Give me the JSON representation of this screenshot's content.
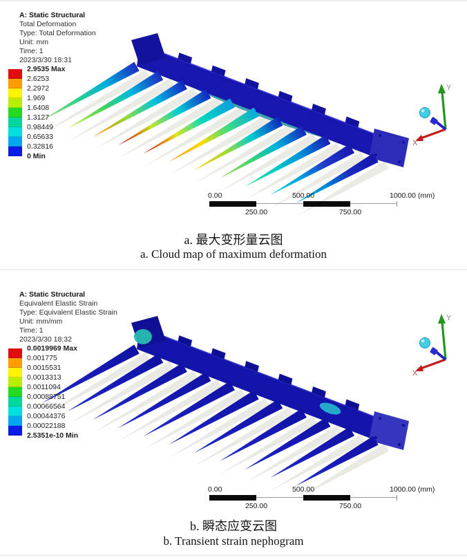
{
  "figure_a": {
    "info_lines": [
      "A: Static Structural",
      "Total Deformation",
      "Type: Total Deformation",
      "Unit: mm",
      "Time: 1",
      "2023/3/30 18:31"
    ],
    "legend": {
      "labels": [
        "2.9535 Max",
        "2.6253",
        "2.2972",
        "1.969",
        "1.6408",
        "1.3127",
        "0.98449",
        "0.65633",
        "0.32816",
        "0 Min"
      ],
      "colors": [
        "#e30b0b",
        "#ff9c00",
        "#fef300",
        "#b6f000",
        "#21dc21",
        "#00d89e",
        "#00e0e0",
        "#00a6ee",
        "#0b1ce8"
      ]
    },
    "scale_bar": {
      "zero": "0.00",
      "mid": "500.00",
      "end": "1000.00 (mm)",
      "q1": "250.00",
      "q3": "750.00"
    },
    "triad": {
      "x": "X",
      "y": "Y"
    },
    "caption_zh": "a. 最大变形量云图",
    "caption_en": "a. Cloud map of maximum deformation"
  },
  "figure_b": {
    "info_lines": [
      "A: Static Structural",
      "Equivalent Elastic Strain",
      "Type: Equivalent Elastic Strain",
      "Unit: mm/mm",
      "Time: 1",
      "2023/3/30 18:32"
    ],
    "legend": {
      "labels": [
        "0.0019969 Max",
        "0.001775",
        "0.0015531",
        "0.0013313",
        "0.0011094",
        "0.00088751",
        "0.00066564",
        "0.00044376",
        "0.00022188",
        "2.5351e-10 Min"
      ],
      "colors": [
        "#e30b0b",
        "#ff9c00",
        "#fef300",
        "#b6f000",
        "#21dc21",
        "#00d89e",
        "#00e0e0",
        "#00a6ee",
        "#0b1ce8"
      ]
    },
    "scale_bar": {
      "zero": "0.00",
      "mid": "500.00",
      "end": "1000.00 (mm)",
      "q1": "250.00",
      "q3": "750.00"
    },
    "triad": {
      "x": "X",
      "y": "Y"
    },
    "caption_zh": "b. 瞬态应变云图",
    "caption_en": "b. Transient strain nephogram"
  }
}
